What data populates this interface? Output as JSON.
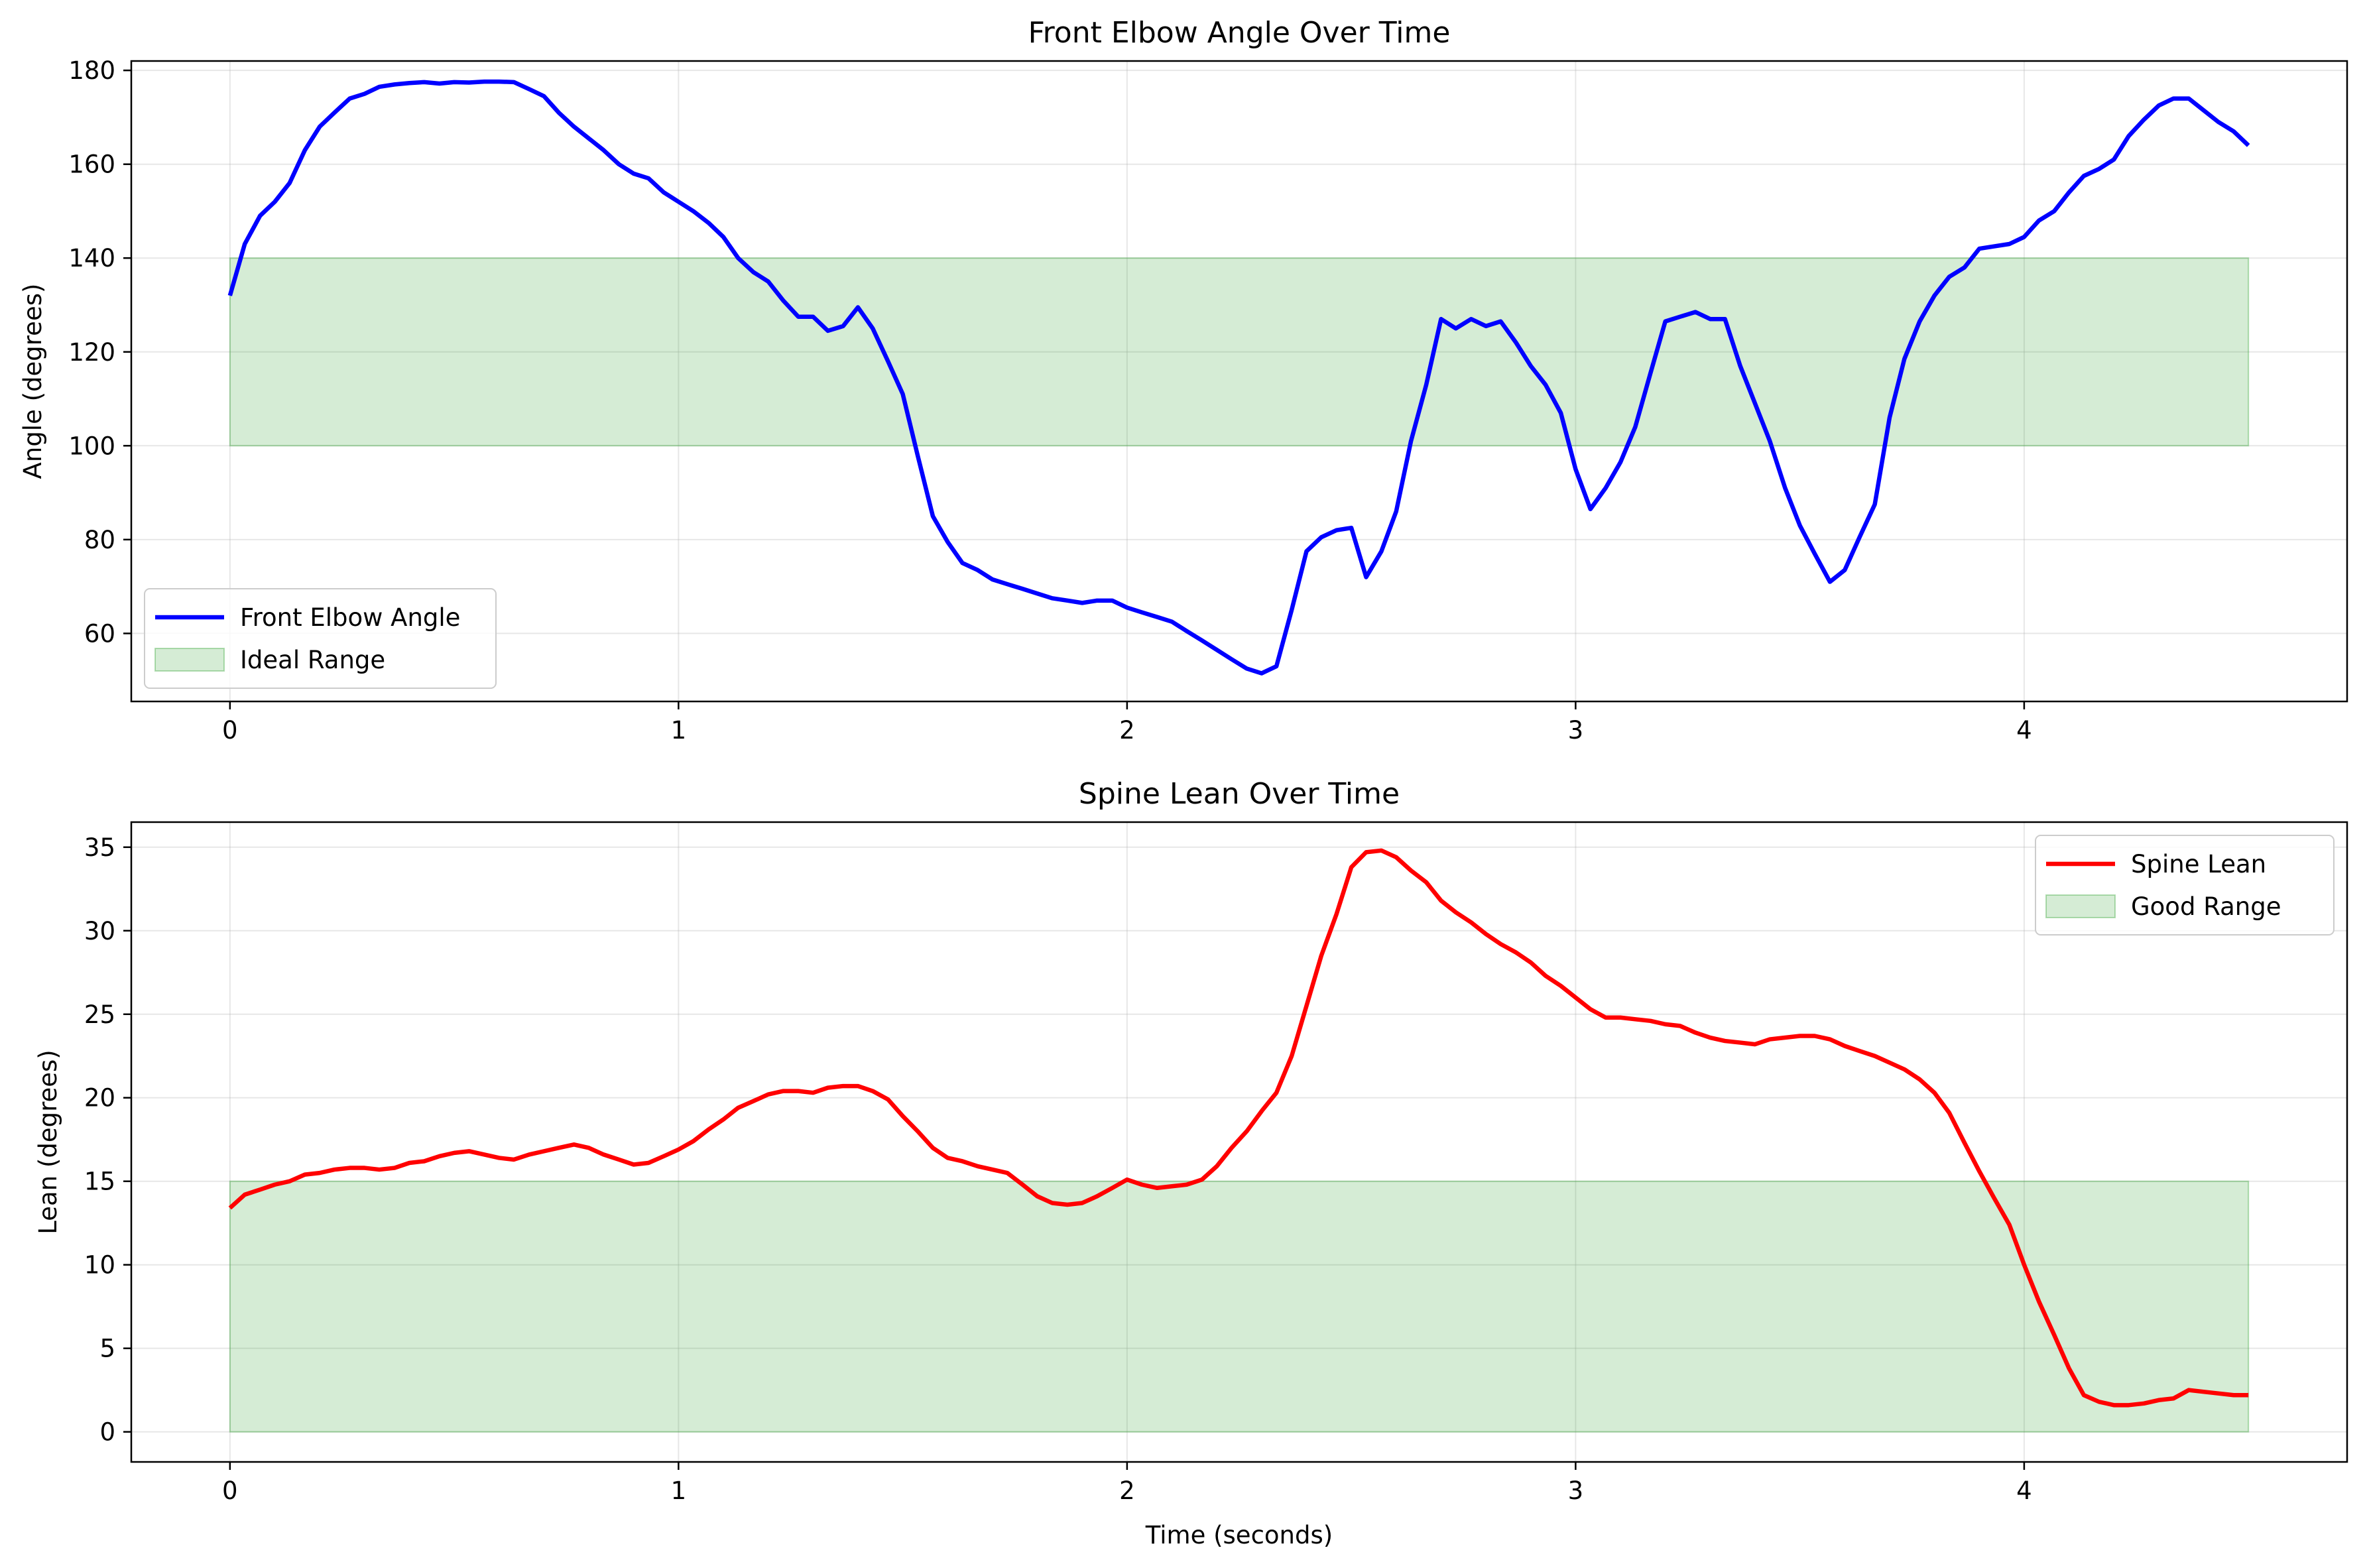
{
  "chart_data": [
    {
      "type": "line",
      "title": "Front Elbow Angle Over Time",
      "xlabel": "",
      "ylabel": "Angle (degrees)",
      "xlim": [
        -0.22,
        4.72
      ],
      "ylim": [
        45.5,
        182
      ],
      "xticks": [
        0,
        1,
        2,
        3,
        4
      ],
      "yticks": [
        60,
        80,
        100,
        120,
        140,
        160,
        180
      ],
      "grid": true,
      "legend_position": "lower-left",
      "band": {
        "name": "Ideal Range",
        "y0": 100,
        "y1": 140,
        "x0": 0,
        "x1": 4.5,
        "color": "#2ca02c"
      },
      "series": [
        {
          "name": "Front Elbow Angle",
          "color": "#0000ff",
          "x": [
            0,
            0.033,
            0.067,
            0.1,
            0.133,
            0.167,
            0.2,
            0.233,
            0.267,
            0.3,
            0.333,
            0.367,
            0.4,
            0.433,
            0.467,
            0.5,
            0.533,
            0.567,
            0.6,
            0.633,
            0.667,
            0.7,
            0.733,
            0.767,
            0.8,
            0.833,
            0.867,
            0.9,
            0.933,
            0.967,
            1.0,
            1.033,
            1.067,
            1.1,
            1.133,
            1.167,
            1.2,
            1.233,
            1.267,
            1.3,
            1.333,
            1.367,
            1.4,
            1.433,
            1.467,
            1.5,
            1.533,
            1.567,
            1.6,
            1.633,
            1.667,
            1.7,
            1.733,
            1.767,
            1.8,
            1.833,
            1.867,
            1.9,
            1.933,
            1.967,
            2.0,
            2.033,
            2.067,
            2.1,
            2.133,
            2.167,
            2.2,
            2.233,
            2.267,
            2.3,
            2.333,
            2.367,
            2.4,
            2.433,
            2.467,
            2.5,
            2.533,
            2.567,
            2.6,
            2.633,
            2.667,
            2.7,
            2.733,
            2.767,
            2.8,
            2.833,
            2.867,
            2.9,
            2.933,
            2.967,
            3.0,
            3.033,
            3.067,
            3.1,
            3.133,
            3.167,
            3.2,
            3.233,
            3.267,
            3.3,
            3.333,
            3.367,
            3.4,
            3.433,
            3.467,
            3.5,
            3.533,
            3.567,
            3.6,
            3.633,
            3.667,
            3.7,
            3.733,
            3.767,
            3.8,
            3.833,
            3.867,
            3.9,
            3.933,
            3.967,
            4.0,
            4.033,
            4.067,
            4.1,
            4.133,
            4.167,
            4.2,
            4.233,
            4.267,
            4.3,
            4.333,
            4.367,
            4.4,
            4.433,
            4.467,
            4.5
          ],
          "y": [
            132,
            143,
            149,
            152,
            156,
            163,
            168,
            171,
            174,
            175,
            176.5,
            177,
            177.3,
            177.5,
            177.2,
            177.5,
            177.4,
            177.6,
            177.6,
            177.5,
            176,
            174.5,
            171,
            168,
            165.5,
            163,
            160,
            158,
            157,
            154,
            152,
            150,
            147.5,
            144.5,
            140,
            137,
            135,
            131,
            127.5,
            127.5,
            124.5,
            125.5,
            129.5,
            125,
            118,
            111,
            98,
            85,
            79.5,
            75,
            73.5,
            71.5,
            70.5,
            69.5,
            68.5,
            67.5,
            67,
            66.5,
            67,
            67,
            65.5,
            64.5,
            63.5,
            62.5,
            60.5,
            58.5,
            56.5,
            54.5,
            52.5,
            51.5,
            53,
            65,
            77.5,
            80.5,
            82,
            82.5,
            72,
            77.5,
            86,
            101,
            113,
            127,
            125,
            127,
            125.5,
            126.5,
            122,
            117,
            113,
            107,
            95,
            86.5,
            91,
            96.5,
            104,
            115.5,
            126.5,
            127.5,
            128.5,
            127,
            127,
            117,
            109,
            101,
            91,
            83,
            77,
            71,
            73.5,
            80.5,
            87.5,
            106,
            118.5,
            126.5,
            132,
            136,
            138,
            142,
            142.5,
            143,
            144.5,
            148,
            150,
            154,
            157.5,
            159,
            161,
            166,
            169.5,
            172.5,
            174,
            174,
            171.5,
            169,
            167,
            164
          ]
        }
      ]
    },
    {
      "type": "line",
      "title": "Spine Lean Over Time",
      "xlabel": "Time (seconds)",
      "ylabel": "Lean (degrees)",
      "xlim": [
        -0.22,
        4.72
      ],
      "ylim": [
        -1.8,
        36.5
      ],
      "xticks": [
        0,
        1,
        2,
        3,
        4
      ],
      "yticks": [
        0,
        5,
        10,
        15,
        20,
        25,
        30,
        35
      ],
      "grid": true,
      "legend_position": "upper-right",
      "band": {
        "name": "Good Range",
        "y0": 0,
        "y1": 15,
        "x0": 0,
        "x1": 4.5,
        "color": "#2ca02c"
      },
      "series": [
        {
          "name": "Spine Lean",
          "color": "#ff0000",
          "x": [
            0,
            0.033,
            0.067,
            0.1,
            0.133,
            0.167,
            0.2,
            0.233,
            0.267,
            0.3,
            0.333,
            0.367,
            0.4,
            0.433,
            0.467,
            0.5,
            0.533,
            0.567,
            0.6,
            0.633,
            0.667,
            0.7,
            0.733,
            0.767,
            0.8,
            0.833,
            0.867,
            0.9,
            0.933,
            0.967,
            1.0,
            1.033,
            1.067,
            1.1,
            1.133,
            1.167,
            1.2,
            1.233,
            1.267,
            1.3,
            1.333,
            1.367,
            1.4,
            1.433,
            1.467,
            1.5,
            1.533,
            1.567,
            1.6,
            1.633,
            1.667,
            1.7,
            1.733,
            1.767,
            1.8,
            1.833,
            1.867,
            1.9,
            1.933,
            1.967,
            2.0,
            2.033,
            2.067,
            2.1,
            2.133,
            2.167,
            2.2,
            2.233,
            2.267,
            2.3,
            2.333,
            2.367,
            2.4,
            2.433,
            2.467,
            2.5,
            2.533,
            2.567,
            2.6,
            2.633,
            2.667,
            2.7,
            2.733,
            2.767,
            2.8,
            2.833,
            2.867,
            2.9,
            2.933,
            2.967,
            3.0,
            3.033,
            3.067,
            3.1,
            3.133,
            3.167,
            3.2,
            3.233,
            3.267,
            3.3,
            3.333,
            3.367,
            3.4,
            3.433,
            3.467,
            3.5,
            3.533,
            3.567,
            3.6,
            3.633,
            3.667,
            3.7,
            3.733,
            3.767,
            3.8,
            3.833,
            3.867,
            3.9,
            3.933,
            3.967,
            4.0,
            4.033,
            4.067,
            4.1,
            4.133,
            4.167,
            4.2,
            4.233,
            4.267,
            4.3,
            4.333,
            4.367,
            4.4,
            4.433,
            4.467,
            4.5
          ],
          "y": [
            13.4,
            14.2,
            14.5,
            14.8,
            15,
            15.4,
            15.5,
            15.7,
            15.8,
            15.8,
            15.7,
            15.8,
            16.1,
            16.2,
            16.5,
            16.7,
            16.8,
            16.6,
            16.4,
            16.3,
            16.6,
            16.8,
            17,
            17.2,
            17,
            16.6,
            16.3,
            16,
            16.1,
            16.5,
            16.9,
            17.4,
            18.1,
            18.7,
            19.4,
            19.8,
            20.2,
            20.4,
            20.4,
            20.3,
            20.6,
            20.7,
            20.7,
            20.4,
            19.9,
            18.9,
            18,
            17,
            16.4,
            16.2,
            15.9,
            15.7,
            15.5,
            14.8,
            14.1,
            13.7,
            13.6,
            13.7,
            14.1,
            14.6,
            15.1,
            14.8,
            14.6,
            14.7,
            14.8,
            15.1,
            15.9,
            17,
            18,
            19.2,
            20.3,
            22.5,
            25.5,
            28.5,
            31,
            33.8,
            34.7,
            34.8,
            34.4,
            33.6,
            32.9,
            31.8,
            31.1,
            30.5,
            29.8,
            29.2,
            28.7,
            28.1,
            27.3,
            26.7,
            26,
            25.3,
            24.8,
            24.8,
            24.7,
            24.6,
            24.4,
            24.3,
            23.9,
            23.6,
            23.4,
            23.3,
            23.2,
            23.5,
            23.6,
            23.7,
            23.7,
            23.5,
            23.1,
            22.8,
            22.5,
            22.1,
            21.7,
            21.1,
            20.3,
            19.1,
            17.3,
            15.6,
            14,
            12.4,
            10,
            7.8,
            5.8,
            3.8,
            2.2,
            1.8,
            1.6,
            1.6,
            1.7,
            1.9,
            2,
            2.5,
            2.4,
            2.3,
            2.2,
            2.2
          ]
        }
      ]
    }
  ]
}
